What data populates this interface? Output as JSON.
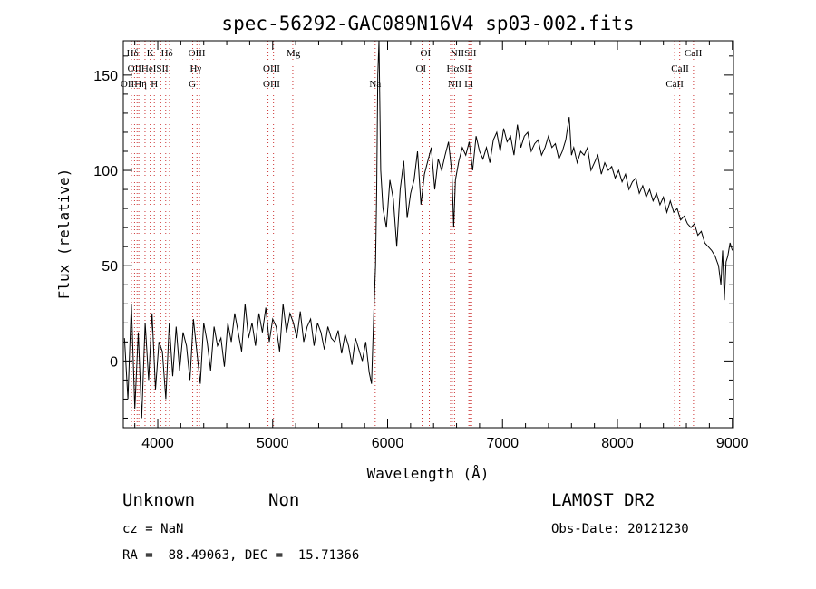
{
  "chart_data": {
    "type": "line",
    "title": "spec-56292-GAC089N16V4_sp03-002.fits",
    "xlabel": "Wavelength (Å)",
    "ylabel": "Flux (relative)",
    "xlim": [
      3700,
      9010
    ],
    "ylim": [
      -35,
      168
    ],
    "xticks": [
      4000,
      5000,
      6000,
      7000,
      8000,
      9000
    ],
    "yticks": [
      0,
      50,
      100,
      150
    ],
    "grid": false,
    "series": [
      {
        "color": "#000000",
        "x": [
          3710,
          3740,
          3770,
          3800,
          3830,
          3860,
          3890,
          3920,
          3950,
          3980,
          4010,
          4040,
          4070,
          4100,
          4130,
          4160,
          4190,
          4220,
          4250,
          4280,
          4310,
          4340,
          4370,
          4400,
          4430,
          4460,
          4490,
          4520,
          4550,
          4580,
          4610,
          4640,
          4670,
          4700,
          4730,
          4760,
          4790,
          4820,
          4850,
          4880,
          4910,
          4940,
          4970,
          5000,
          5030,
          5060,
          5090,
          5120,
          5150,
          5180,
          5210,
          5240,
          5270,
          5300,
          5330,
          5360,
          5390,
          5420,
          5450,
          5480,
          5510,
          5540,
          5570,
          5600,
          5630,
          5660,
          5690,
          5720,
          5750,
          5780,
          5810,
          5840,
          5860,
          5880,
          5895,
          5905,
          5915,
          5925,
          5940,
          5960,
          5990,
          6020,
          6050,
          6080,
          6110,
          6140,
          6170,
          6200,
          6230,
          6260,
          6290,
          6320,
          6350,
          6380,
          6410,
          6440,
          6470,
          6500,
          6530,
          6560,
          6575,
          6590,
          6620,
          6650,
          6680,
          6710,
          6740,
          6770,
          6800,
          6830,
          6860,
          6890,
          6920,
          6950,
          6980,
          7010,
          7040,
          7070,
          7100,
          7130,
          7160,
          7190,
          7220,
          7250,
          7280,
          7310,
          7340,
          7370,
          7400,
          7430,
          7460,
          7490,
          7520,
          7550,
          7580,
          7600,
          7620,
          7650,
          7680,
          7710,
          7740,
          7770,
          7800,
          7830,
          7860,
          7890,
          7920,
          7950,
          7980,
          8010,
          8040,
          8070,
          8100,
          8130,
          8160,
          8190,
          8220,
          8250,
          8280,
          8310,
          8340,
          8370,
          8400,
          8430,
          8460,
          8490,
          8520,
          8550,
          8580,
          8610,
          8640,
          8670,
          8700,
          8730,
          8760,
          8790,
          8820,
          8850,
          8880,
          8900,
          8915,
          8930,
          8945,
          8960,
          8980,
          9000
        ],
        "y": [
          12,
          -20,
          30,
          -25,
          15,
          -30,
          20,
          -10,
          25,
          -15,
          10,
          5,
          -20,
          20,
          -8,
          18,
          -5,
          15,
          8,
          -10,
          22,
          5,
          -12,
          20,
          10,
          -5,
          18,
          8,
          12,
          -3,
          20,
          10,
          25,
          15,
          5,
          30,
          12,
          20,
          8,
          25,
          15,
          28,
          10,
          22,
          18,
          5,
          30,
          15,
          25,
          20,
          12,
          26,
          10,
          18,
          22,
          8,
          20,
          15,
          6,
          18,
          12,
          10,
          16,
          4,
          14,
          8,
          -2,
          12,
          6,
          0,
          10,
          -6,
          -12,
          25,
          50,
          90,
          150,
          168,
          100,
          80,
          70,
          95,
          85,
          60,
          90,
          105,
          75,
          88,
          95,
          110,
          82,
          98,
          105,
          112,
          90,
          106,
          100,
          108,
          115,
          98,
          70,
          95,
          105,
          112,
          108,
          115,
          100,
          118,
          110,
          106,
          112,
          104,
          116,
          120,
          110,
          122,
          115,
          118,
          108,
          124,
          112,
          118,
          120,
          110,
          114,
          116,
          108,
          112,
          118,
          112,
          114,
          106,
          110,
          116,
          128,
          108,
          112,
          104,
          110,
          108,
          112,
          100,
          104,
          108,
          98,
          104,
          100,
          102,
          96,
          100,
          94,
          98,
          90,
          94,
          96,
          88,
          92,
          86,
          90,
          84,
          88,
          82,
          86,
          78,
          84,
          78,
          80,
          74,
          76,
          72,
          70,
          72,
          66,
          68,
          62,
          60,
          58,
          55,
          50,
          40,
          58,
          32,
          52,
          55,
          62,
          58
        ]
      }
    ],
    "lines": {
      "color": "#cc3333",
      "x": [
        3771,
        3798,
        3820,
        3835,
        3889,
        3934,
        3970,
        4026,
        4069,
        4102,
        4304,
        4341,
        4363,
        4959,
        5007,
        5175,
        5892,
        6300,
        6363,
        6548,
        6563,
        6583,
        6707,
        6716,
        6731,
        8498,
        8542,
        8662
      ],
      "labels": [
        {
          "text": "Hδ",
          "x": 3780,
          "row": 0
        },
        {
          "text": "K",
          "x": 3935,
          "row": 0
        },
        {
          "text": "Hδ",
          "x": 4080,
          "row": 0
        },
        {
          "text": "OIII",
          "x": 4340,
          "row": 0
        },
        {
          "text": "Mg",
          "x": 5180,
          "row": 0
        },
        {
          "text": "OI",
          "x": 6330,
          "row": 0
        },
        {
          "text": "NIISII",
          "x": 6660,
          "row": 0
        },
        {
          "text": "CaII",
          "x": 8660,
          "row": 0
        },
        {
          "text": "OIIHeISII",
          "x": 3915,
          "row": 1
        },
        {
          "text": "Hγ",
          "x": 4330,
          "row": 1
        },
        {
          "text": "OIII",
          "x": 4990,
          "row": 1
        },
        {
          "text": "OI",
          "x": 6290,
          "row": 1
        },
        {
          "text": "HαSII",
          "x": 6620,
          "row": 1
        },
        {
          "text": "CaII",
          "x": 8545,
          "row": 1
        },
        {
          "text": "OIIHη",
          "x": 3790,
          "row": 2
        },
        {
          "text": "H",
          "x": 3970,
          "row": 2
        },
        {
          "text": "G",
          "x": 4300,
          "row": 2
        },
        {
          "text": "OIII",
          "x": 4990,
          "row": 2
        },
        {
          "text": "Na",
          "x": 5892,
          "row": 2
        },
        {
          "text": "NII",
          "x": 6583,
          "row": 2
        },
        {
          "text": "Li",
          "x": 6707,
          "row": 2
        },
        {
          "text": "CaII",
          "x": 8498,
          "row": 2
        }
      ]
    }
  },
  "info": {
    "class_label": "Unknown",
    "subclass_label": "Non",
    "survey": "LAMOST DR2",
    "cz": "cz = NaN",
    "obs_date": "Obs-Date: 20121230",
    "coords": "RA =  88.49063, DEC =  15.71366"
  }
}
